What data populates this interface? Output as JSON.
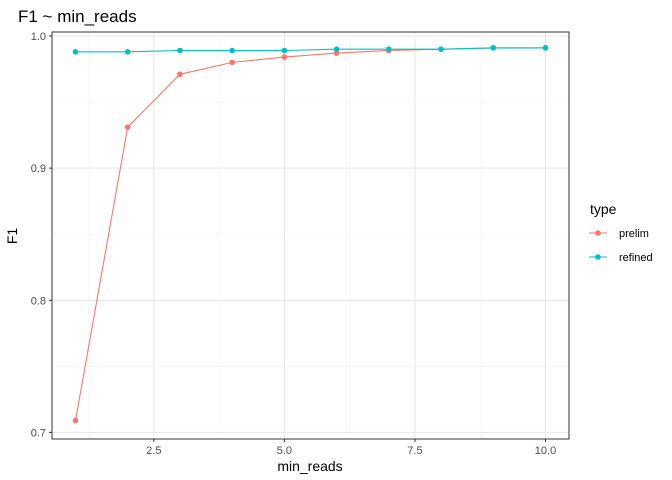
{
  "chart_data": {
    "type": "line",
    "title": "F1 ~ min_reads",
    "xlabel": "min_reads",
    "ylabel": "F1",
    "xlim": [
      0.55,
      10.45
    ],
    "ylim": [
      0.695,
      1.003
    ],
    "xticks": [
      2.5,
      5.0,
      7.5,
      10.0
    ],
    "xtick_labels": [
      "2.5",
      "5.0",
      "7.5",
      "10.0"
    ],
    "yticks": [
      0.7,
      0.8,
      0.9,
      1.0
    ],
    "ytick_labels": [
      "0.7",
      "0.8",
      "0.9",
      "1.0"
    ],
    "grid": true,
    "legend": {
      "title": "type",
      "placement": "right"
    },
    "series": [
      {
        "name": "prelim",
        "color": "#f8766d",
        "x": [
          1,
          2,
          3,
          4,
          5,
          6,
          7,
          8,
          9,
          10
        ],
        "y": [
          0.709,
          0.931,
          0.971,
          0.98,
          0.984,
          0.987,
          0.989,
          0.99,
          0.991,
          0.991
        ]
      },
      {
        "name": "refined",
        "color": "#00bfc4",
        "x": [
          1,
          2,
          3,
          4,
          5,
          6,
          7,
          8,
          9,
          10
        ],
        "y": [
          0.988,
          0.988,
          0.989,
          0.989,
          0.989,
          0.99,
          0.99,
          0.99,
          0.991,
          0.991
        ]
      }
    ]
  }
}
